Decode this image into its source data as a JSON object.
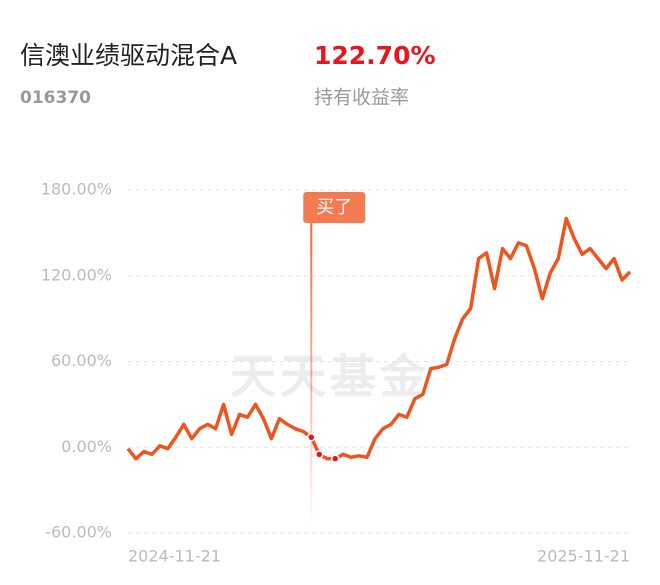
{
  "header": {
    "fund_name": "信澳业绩驱动混合A",
    "fund_code": "016370",
    "return_value": "122.70%",
    "return_label": "持有收益率"
  },
  "chart_data": {
    "type": "line",
    "watermark": "天天基金",
    "annotation": "买了",
    "categories": [
      "2024-11-21",
      null,
      null,
      null,
      null,
      null,
      null,
      null,
      null,
      null,
      null,
      null,
      null,
      null,
      null,
      null,
      null,
      null,
      null,
      null,
      null,
      null,
      null,
      null,
      null,
      null,
      null,
      null,
      null,
      null,
      null,
      null,
      null,
      null,
      null,
      null,
      null,
      null,
      null,
      null,
      null,
      null,
      null,
      null,
      null,
      null,
      null,
      null,
      null,
      null,
      null,
      null,
      null,
      null,
      null,
      null,
      null,
      null,
      null,
      null,
      null,
      null,
      null,
      "2025-11-21"
    ],
    "series": [
      {
        "name": "持有收益率",
        "color": "#f0541e",
        "values": [
          -1,
          -8,
          -3,
          -5,
          1,
          -1,
          7,
          16,
          6,
          13,
          16,
          13,
          30,
          9,
          23,
          21,
          30,
          20,
          6,
          20,
          16,
          13,
          11,
          7,
          -5,
          -8,
          -8,
          -5,
          -7,
          -6,
          -7,
          6,
          13,
          16,
          23,
          21,
          34,
          37,
          55,
          56,
          58,
          76,
          90,
          97,
          132,
          136,
          111,
          139,
          132,
          143,
          141,
          125,
          104,
          122,
          132,
          160,
          146,
          135,
          139,
          132,
          125,
          132,
          117,
          122.7
        ]
      }
    ],
    "ylim": [
      -60,
      180
    ],
    "yticks": [
      {
        "value": -60,
        "label": "-60.00%"
      },
      {
        "value": 0,
        "label": "0.00%"
      },
      {
        "value": 60,
        "label": "60.00%"
      },
      {
        "value": 120,
        "label": "120.00%"
      },
      {
        "value": 180,
        "label": "180.00%"
      }
    ],
    "grid": true
  }
}
